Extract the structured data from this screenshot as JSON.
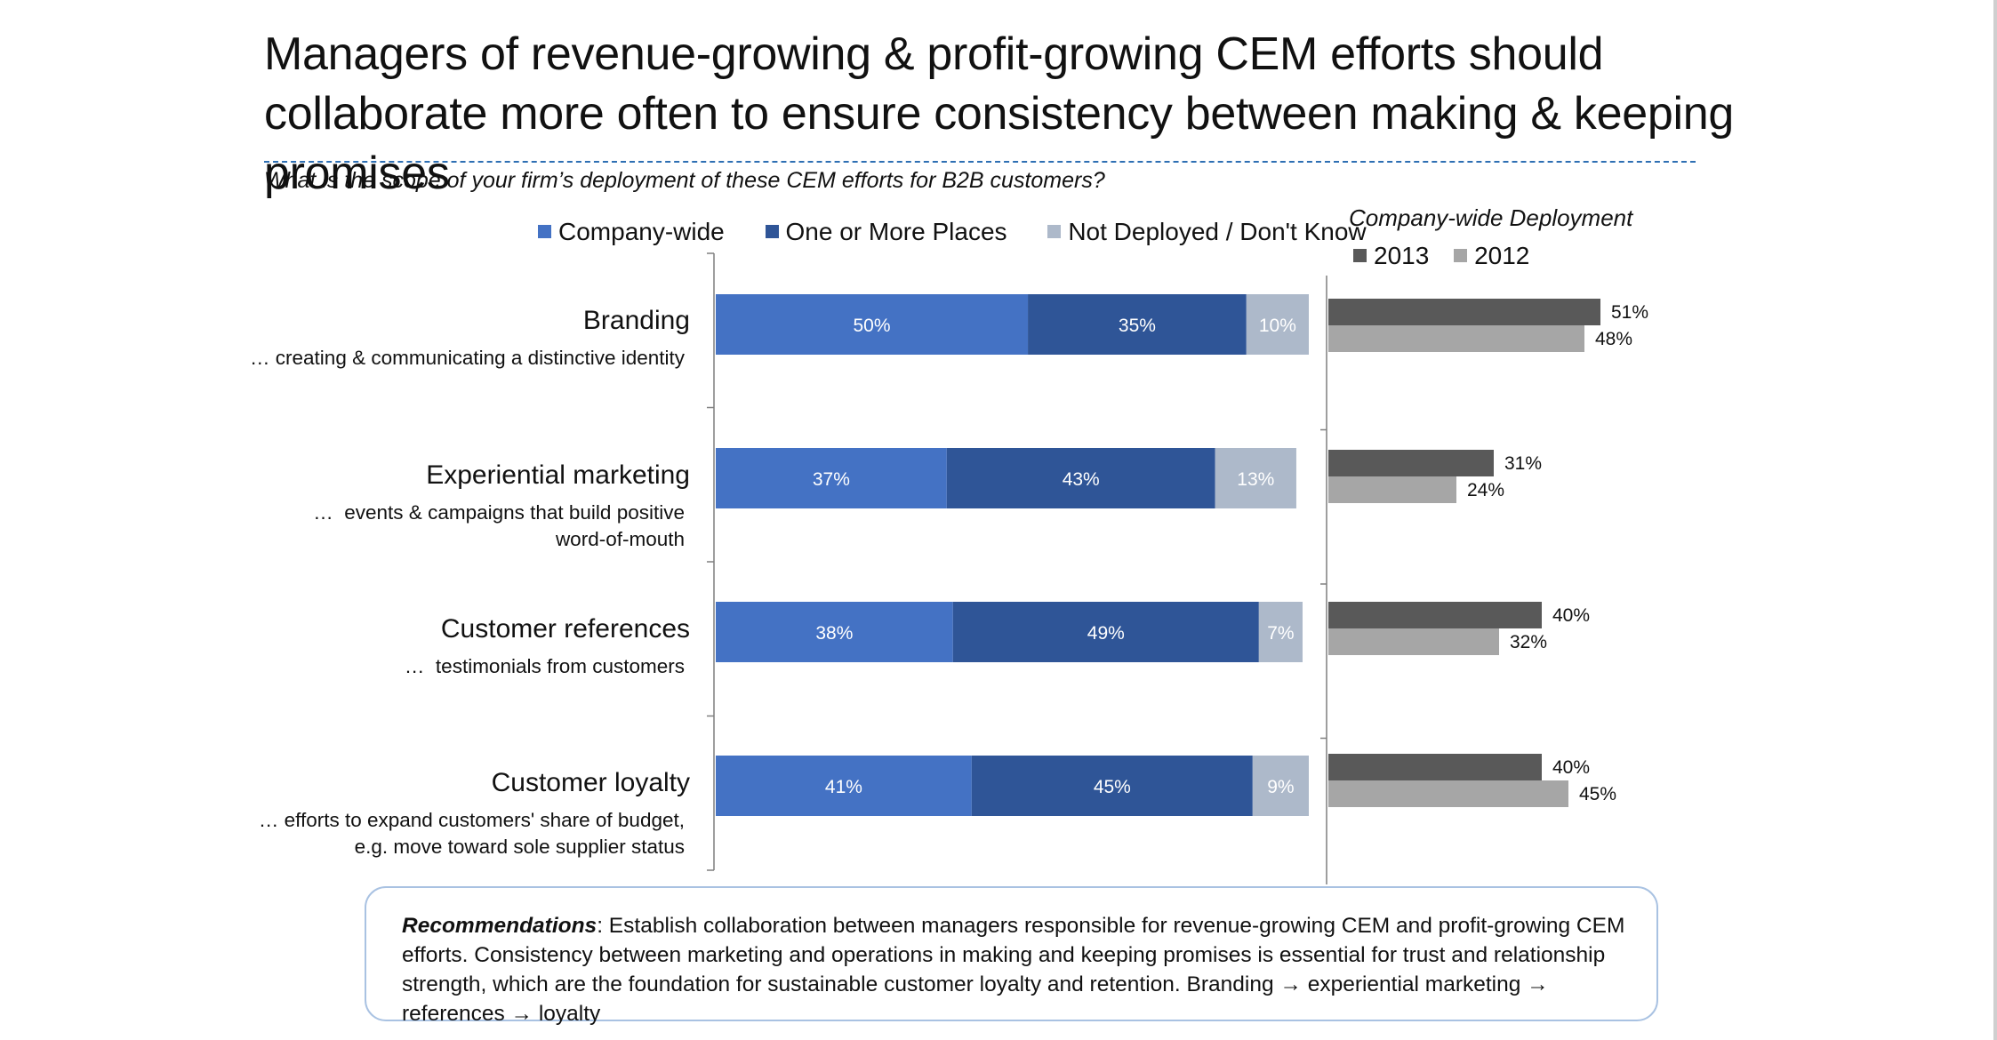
{
  "title": "Managers of revenue-growing & profit-growing CEM efforts should collaborate more often to ensure consistency between making & keeping promises",
  "question": "What is the scope of your firm’s deployment of these CEM efforts for B2B customers?",
  "legend_main": [
    {
      "label": "Company-wide",
      "color": "#4472c4"
    },
    {
      "label": "One or More Places",
      "color": "#2f5597"
    },
    {
      "label": "Not Deployed / Don't Know",
      "color": "#adb9ca"
    }
  ],
  "legend_right": {
    "title": "Company-wide Deployment",
    "items": [
      {
        "label": "2013",
        "color": "#595959"
      },
      {
        "label": "2012",
        "color": "#a6a6a6"
      }
    ]
  },
  "categories": [
    {
      "name": "Branding",
      "desc": "… creating & communicating a distinctive identity"
    },
    {
      "name": "Experiential marketing",
      "desc": "…  events & campaigns that build positive\nword-of-mouth"
    },
    {
      "name": "Customer references",
      "desc": "…  testimonials from customers"
    },
    {
      "name": "Customer loyalty",
      "desc": "… efforts to expand customers' share of budget,\ne.g. move toward sole supplier status"
    }
  ],
  "chart_data": [
    {
      "type": "bar",
      "orientation": "horizontal",
      "stacked": true,
      "categories": [
        "Branding",
        "Experiential marketing",
        "Customer references",
        "Customer loyalty"
      ],
      "series": [
        {
          "name": "Company-wide",
          "values": [
            50,
            37,
            38,
            41
          ],
          "labels": [
            "50%",
            "37%",
            "38%",
            "41%"
          ],
          "color": "#4472c4"
        },
        {
          "name": "One or More Places",
          "values": [
            35,
            43,
            49,
            45
          ],
          "labels": [
            "35%",
            "43%",
            "49%",
            "45%"
          ],
          "color": "#2f5597"
        },
        {
          "name": "Not Deployed / Don't Know",
          "values": [
            10,
            13,
            7,
            9
          ],
          "labels": [
            "10%",
            "13%",
            "7%",
            "9%"
          ],
          "color": "#adb9ca"
        }
      ],
      "xlim": [
        0,
        95
      ],
      "legend": "top"
    },
    {
      "type": "bar",
      "orientation": "horizontal",
      "title": "Company-wide Deployment",
      "categories": [
        "Branding",
        "Experiential marketing",
        "Customer references",
        "Customer loyalty"
      ],
      "series": [
        {
          "name": "2013",
          "values": [
            51,
            31,
            40,
            40
          ],
          "labels": [
            "51%",
            "31%",
            "40%",
            "40%"
          ],
          "color": "#595959"
        },
        {
          "name": "2012",
          "values": [
            48,
            24,
            32,
            45
          ],
          "labels": [
            "48%",
            "24%",
            "32%",
            "45%"
          ],
          "color": "#a6a6a6"
        }
      ],
      "xlim": [
        0,
        60
      ],
      "legend": "top"
    }
  ],
  "recommendation": {
    "label": "Recommendations",
    "text": ": Establish collaboration between managers responsible for revenue-growing CEM and profit-growing CEM efforts. Consistency between marketing and operations in making and keeping promises is essential for trust and relationship strength, which are the foundation for sustainable customer loyalty and retention. Branding → experiential marketing → references → loyalty"
  }
}
